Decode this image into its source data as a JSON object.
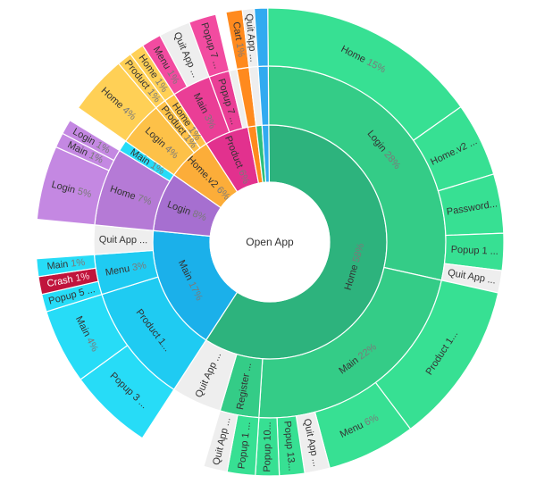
{
  "chart_data": {
    "type": "sunburst",
    "root": "Open App",
    "colors": {
      "Home": "#2cc07e",
      "Main": "#1ec8f0",
      "Login": "#b57ad6",
      "Home.v2": "#fdb33b",
      "Product": "#ea3e96",
      "Register": "#2cc07e",
      "Cart": "#ff8a1e",
      "Quit App": "#eeeeee",
      "Quit App 2": "#31aaf0",
      "Crash": "#c0143c"
    },
    "nodes": [
      {
        "id": "a",
        "label": "Home",
        "pct": "58%",
        "value": 58,
        "color": "#2db37d",
        "children": [
          {
            "id": "a1",
            "label": "Login",
            "pct": "28%",
            "value": 28,
            "color": "#34cc87",
            "children": [
              {
                "id": "a1a",
                "label": "Home",
                "pct": "15%",
                "value": 15,
                "color": "#37e093"
              },
              {
                "id": "a1b",
                "label": "Home.v2 ...",
                "value": 5,
                "color": "#37e093"
              },
              {
                "id": "a1c",
                "label": "Password...",
                "value": 4,
                "color": "#37e093"
              },
              {
                "id": "a1d",
                "label": "Popup 1 ...",
                "value": 2.5,
                "color": "#37e093"
              },
              {
                "id": "a1e",
                "label": "Quit App ...",
                "value": 1.5,
                "color": "#eeeeee"
              }
            ]
          },
          {
            "id": "a2",
            "label": "Main",
            "pct": "22%",
            "value": 22,
            "color": "#34cc87",
            "children": [
              {
                "id": "a2a",
                "label": "Product 1...",
                "value": 11,
                "color": "#37e093"
              },
              {
                "id": "a2b",
                "label": "Menu",
                "pct": "6%",
                "value": 6,
                "color": "#37e093"
              },
              {
                "id": "a2c",
                "label": "Quit App ...",
                "value": 1.7,
                "color": "#eeeeee"
              },
              {
                "id": "a2d",
                "label": "Popup 13...",
                "value": 1.7,
                "color": "#37e093"
              },
              {
                "id": "a2e",
                "label": "Popup 10...",
                "value": 1.6,
                "color": "#37e093"
              }
            ]
          },
          {
            "id": "a3",
            "label": "Register ...",
            "value": 3.5,
            "color": "#34cc87",
            "children": [
              {
                "id": "a3a",
                "label": "Popup 1 ...",
                "value": 1.9,
                "color": "#37e093"
              },
              {
                "id": "a3b",
                "label": "Quit App ...",
                "value": 1.6,
                "color": "#eeeeee"
              }
            ]
          },
          {
            "id": "a4",
            "label": "Quit App ...",
            "value": 4.5,
            "color": "#eeeeee"
          }
        ]
      },
      {
        "id": "b",
        "label": "Main",
        "pct": "17%",
        "value": 17,
        "color": "#1bb0ea",
        "children": [
          {
            "id": "b1",
            "label": "Product 1...",
            "value": 9,
            "color": "#1fcbf2",
            "children": [
              {
                "id": "b1a",
                "label": "Popup 3 ...",
                "value": 4.5,
                "color": "#27dcf7"
              },
              {
                "id": "b1b",
                "label": "Main",
                "pct": "4%",
                "value": 4,
                "color": "#27dcf7"
              }
            ]
          },
          {
            "id": "b2",
            "label": "Menu",
            "pct": "3%",
            "value": 3,
            "color": "#1fcbf2",
            "children": [
              {
                "id": "b2a",
                "label": "Popup 5 ...",
                "value": 1,
                "color": "#27dcf7"
              },
              {
                "id": "b2b",
                "label": "Crash",
                "pct": "1%",
                "value": 1,
                "color": "#c0143c"
              },
              {
                "id": "b2c",
                "label": "Main",
                "pct": "1%",
                "value": 1,
                "color": "#27dcf7"
              }
            ]
          },
          {
            "id": "b3",
            "label": "Quit App ...",
            "value": 2.2,
            "color": "#eeeeee"
          }
        ]
      },
      {
        "id": "c",
        "label": "Login",
        "pct": "8%",
        "value": 8,
        "color": "#a66fd0",
        "children": [
          {
            "id": "c1",
            "label": "Home",
            "pct": "7%",
            "value": 7,
            "color": "#b57ad6",
            "children": [
              {
                "id": "c1a",
                "label": "Login",
                "pct": "5%",
                "value": 5,
                "color": "#c488e2"
              },
              {
                "id": "c1b",
                "label": "Main",
                "pct": "1%",
                "value": 1,
                "color": "#c488e2"
              },
              {
                "id": "c1c",
                "label": "Login",
                "pct": "1%",
                "value": 1,
                "color": "#c488e2"
              }
            ]
          },
          {
            "id": "c2",
            "label": "Main",
            "pct": "1%",
            "value": 1,
            "color": "#27dcf7"
          }
        ]
      },
      {
        "id": "d",
        "label": "Home.v2",
        "pct": "6%",
        "value": 6,
        "color": "#fcad39",
        "children": [
          {
            "id": "d1",
            "label": "Login",
            "pct": "4%",
            "value": 4,
            "color": "#fdc148",
            "children": [
              {
                "id": "d1a",
                "label": "Home",
                "pct": "4%",
                "value": 4,
                "color": "#ffd056"
              }
            ]
          },
          {
            "id": "d2",
            "label": "Product",
            "pct": "1%",
            "value": 1,
            "color": "#fdc148",
            "children": [
              {
                "id": "d2a",
                "label": "Product",
                "pct": "1%",
                "value": 1,
                "color": "#ffd056"
              }
            ]
          },
          {
            "id": "d3",
            "label": "Home",
            "pct": "1%",
            "value": 1,
            "color": "#fdc148",
            "children": [
              {
                "id": "d3a",
                "label": "Home",
                "pct": "1%",
                "value": 1,
                "color": "#ffd056"
              }
            ]
          }
        ]
      },
      {
        "id": "e",
        "label": "Product",
        "pct": "6%",
        "value": 6,
        "color": "#e2318e",
        "children": [
          {
            "id": "e1",
            "label": "Main",
            "pct": "3%",
            "value": 3,
            "color": "#ea3e96",
            "children": [
              {
                "id": "e1a",
                "label": "Menu",
                "pct": "1%",
                "value": 1,
                "color": "#f24ba0"
              },
              {
                "id": "e1b",
                "label": "Quit App ...",
                "value": 1.6,
                "color": "#eeeeee"
              }
            ]
          },
          {
            "id": "e2",
            "label": "Popup 7 ...",
            "value": 1.6,
            "color": "#ea3e96",
            "children": [
              {
                "id": "e2a",
                "label": "Popup 7 ...",
                "value": 1.6,
                "color": "#f24ba0"
              }
            ]
          },
          {
            "id": "e3",
            "label": "",
            "value": 0.6,
            "color": "#eeeeee"
          }
        ]
      },
      {
        "id": "f",
        "label": "",
        "value": 1.1,
        "color": "#ff8a1e",
        "children": [
          {
            "id": "f1",
            "label": "",
            "value": 1.1,
            "color": "#ff8a1e",
            "children": [
              {
                "id": "f1a",
                "label": "Cart",
                "pct": "1%",
                "value": 1.1,
                "color": "#ff8a1e"
              }
            ]
          }
        ]
      },
      {
        "id": "g",
        "label": "",
        "value": 0.8,
        "color": "#2cc07e",
        "children": [
          {
            "id": "g1",
            "label": "",
            "value": 0.8,
            "color": "#eeeeee",
            "children": [
              {
                "id": "g1a",
                "label": "Quit App ...",
                "value": 0.8,
                "color": "#eeeeee"
              }
            ]
          }
        ]
      },
      {
        "id": "h",
        "label": "",
        "value": 0.9,
        "color": "#31aaf0",
        "children": [
          {
            "id": "h1",
            "label": "",
            "value": 0.9,
            "color": "#31aaf0",
            "children": [
              {
                "id": "h1a",
                "label": "",
                "value": 0.9,
                "color": "#31aaf0"
              }
            ]
          }
        ]
      }
    ]
  }
}
